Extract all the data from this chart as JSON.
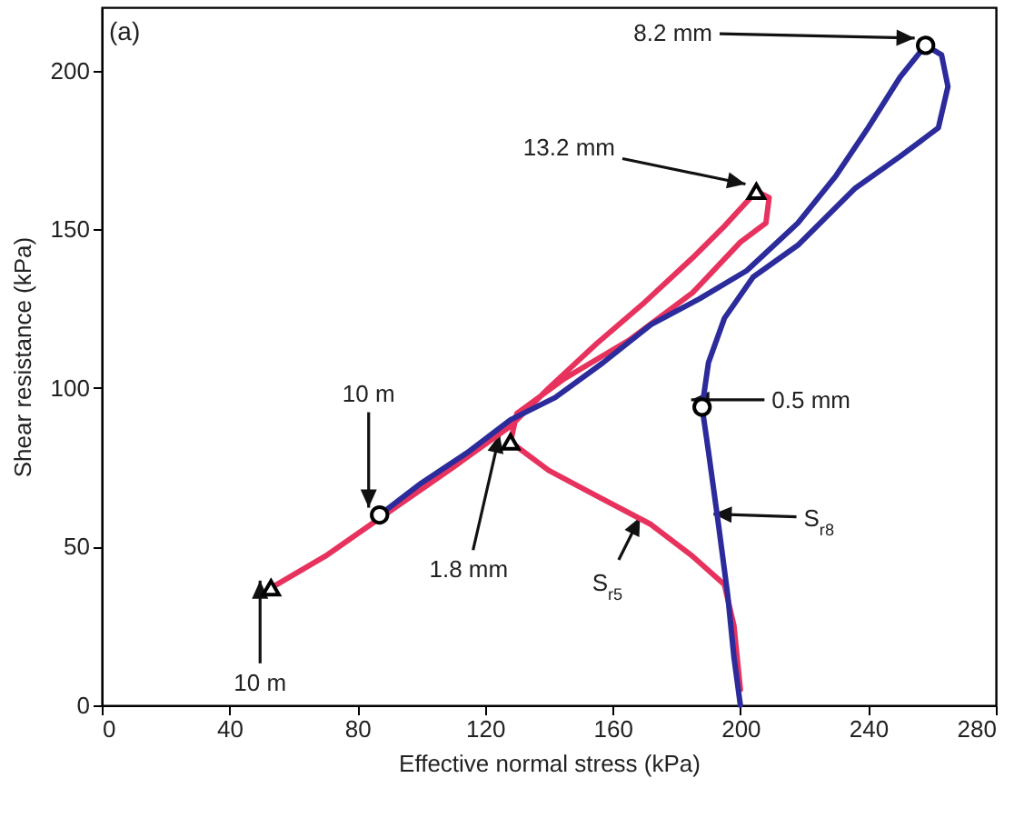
{
  "chart_data": {
    "type": "line",
    "xlabel": "Effective normal stress (kPa)",
    "ylabel": "Shear resistance (kPa)",
    "xlim": [
      0,
      280
    ],
    "xticks": [
      0,
      40,
      80,
      120,
      160,
      200,
      240,
      280
    ],
    "ylim": [
      0,
      220
    ],
    "yticks": [
      0,
      50,
      100,
      150,
      200
    ],
    "grid": false,
    "series": [
      {
        "type": "line",
        "color": "#e8325e",
        "marker": "none",
        "x": [
          53,
          70,
          90,
          110,
          128,
          140,
          155,
          170,
          185,
          195,
          205,
          209,
          208,
          200,
          185,
          165,
          145,
          130,
          128,
          140,
          155,
          172,
          185,
          195,
          198,
          200
        ],
        "values": [
          37,
          47,
          61,
          75,
          88,
          100,
          114,
          127,
          141,
          151,
          162,
          160,
          152,
          146,
          130,
          115,
          103,
          92,
          83,
          74,
          66,
          57,
          47,
          38,
          25,
          5
        ]
      },
      {
        "type": "line",
        "color": "#2b2b9b",
        "marker": "none",
        "x": [
          87,
          100,
          115,
          128,
          142,
          157,
          172,
          187,
          202,
          218,
          230,
          240,
          250,
          258,
          263,
          265,
          262,
          250,
          236,
          218,
          204,
          195,
          190,
          188,
          190,
          193,
          196,
          198,
          200
        ],
        "values": [
          60,
          70,
          80,
          90,
          97,
          108,
          120,
          128,
          137,
          152,
          167,
          182,
          198,
          208,
          205,
          195,
          182,
          173,
          163,
          145,
          135,
          122,
          108,
          94,
          80,
          58,
          35,
          15,
          0
        ]
      },
      {
        "type": "scatter",
        "color": "#000000",
        "marker": "triangle",
        "x": [
          53,
          128,
          205
        ],
        "values": [
          37,
          83,
          162
        ]
      },
      {
        "type": "scatter",
        "color": "#000000",
        "marker": "circle",
        "x": [
          87,
          188,
          258
        ],
        "values": [
          60,
          94,
          208
        ]
      }
    ],
    "annotations": [
      "(a)",
      {
        "text": "10 m",
        "x": 53,
        "y": 37
      },
      {
        "text": "10 m",
        "x": 87,
        "y": 60
      },
      {
        "text": "1.8 mm",
        "x": 128,
        "y": 83
      },
      {
        "text": "13.2 mm",
        "x": 205,
        "y": 162
      },
      {
        "text": "8.2 mm",
        "x": 258,
        "y": 208
      },
      {
        "text": "0.5 mm",
        "x": 188,
        "y": 94
      },
      {
        "text": "S$_{r5}$",
        "x": 172,
        "y": 57
      },
      {
        "text": "S$_{r8}$",
        "x": 195,
        "y": 58
      }
    ]
  }
}
